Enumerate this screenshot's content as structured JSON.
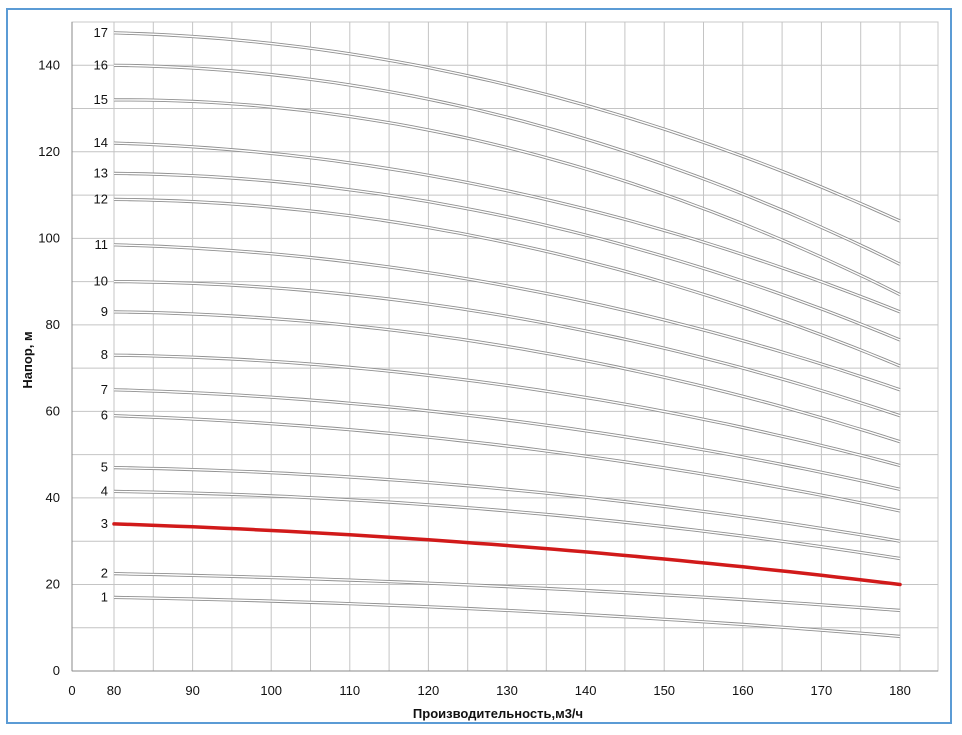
{
  "chart_data": {
    "type": "line",
    "title": "",
    "xlabel": "Производительность,м3/ч",
    "ylabel": "Напор, м",
    "xlim": [
      0,
      180
    ],
    "ylim": [
      0,
      150
    ],
    "x_ticks": [
      0,
      80,
      90,
      100,
      110,
      120,
      130,
      140,
      150,
      160,
      170,
      180
    ],
    "y_ticks": [
      0,
      20,
      40,
      60,
      80,
      100,
      120,
      140
    ],
    "grid": true,
    "highlight_color": "#d11a1a",
    "curve_color": "#9a9a9a",
    "series": [
      {
        "name": "1",
        "x": [
          80,
          130,
          180
        ],
        "y": [
          17,
          14,
          8
        ]
      },
      {
        "name": "2",
        "x": [
          80,
          130,
          180
        ],
        "y": [
          22.5,
          19.5,
          14
        ]
      },
      {
        "name": "3",
        "x": [
          80,
          130,
          180
        ],
        "y": [
          34,
          29,
          20
        ],
        "highlight": true
      },
      {
        "name": "4",
        "x": [
          80,
          130,
          180
        ],
        "y": [
          41.5,
          37,
          26
        ]
      },
      {
        "name": "5",
        "x": [
          80,
          130,
          180
        ],
        "y": [
          47,
          42,
          30
        ]
      },
      {
        "name": "6",
        "x": [
          80,
          130,
          180
        ],
        "y": [
          59,
          52,
          37
        ]
      },
      {
        "name": "7",
        "x": [
          80,
          130,
          180
        ],
        "y": [
          65,
          58,
          42
        ]
      },
      {
        "name": "8",
        "x": [
          80,
          130,
          180
        ],
        "y": [
          73,
          66,
          47.5
        ]
      },
      {
        "name": "9",
        "x": [
          80,
          130,
          180
        ],
        "y": [
          83,
          75,
          53
        ]
      },
      {
        "name": "10",
        "x": [
          80,
          130,
          180
        ],
        "y": [
          90,
          82,
          59
        ]
      },
      {
        "name": "11",
        "x": [
          80,
          130,
          180
        ],
        "y": [
          98.5,
          89,
          65
        ]
      },
      {
        "name": "12",
        "x": [
          80,
          130,
          180
        ],
        "y": [
          109,
          99,
          70.5
        ]
      },
      {
        "name": "13",
        "x": [
          80,
          130,
          180
        ],
        "y": [
          115,
          105,
          76.5
        ]
      },
      {
        "name": "14",
        "x": [
          80,
          130,
          180
        ],
        "y": [
          122,
          111,
          83
        ]
      },
      {
        "name": "15",
        "x": [
          80,
          130,
          180
        ],
        "y": [
          132,
          121,
          87
        ]
      },
      {
        "name": "16",
        "x": [
          80,
          130,
          180
        ],
        "y": [
          140,
          128,
          94
        ]
      },
      {
        "name": "17",
        "x": [
          80,
          130,
          180
        ],
        "y": [
          147.5,
          135.5,
          104
        ]
      }
    ]
  }
}
